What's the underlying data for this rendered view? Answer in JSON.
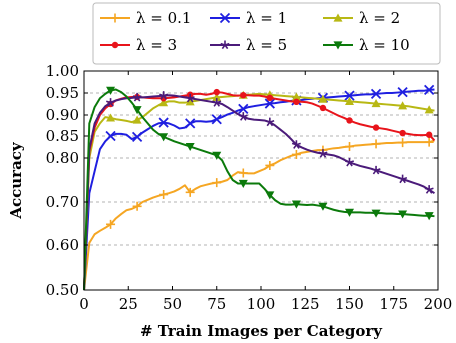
{
  "chart_data": {
    "type": "line",
    "title": "",
    "xlabel": "# Train Images per Category",
    "ylabel": "Accuracy",
    "xlim": [
      0,
      200
    ],
    "ylim": [
      0.5,
      1.0
    ],
    "y_scale": "nonlinear (ticks 0.50, 0.60, 0.70 widely spaced; 0.80–1.00 compressed)",
    "xticks": [
      "0",
      "25",
      "50",
      "75",
      "100",
      "125",
      "150",
      "175",
      "200"
    ],
    "yticks": [
      "0.50",
      "0.60",
      "0.70",
      "0.80",
      "0.85",
      "0.90",
      "0.95",
      "1.00"
    ],
    "grid": "horizontal dashed at y ticks",
    "legend_position": "top, outside plot, 3 columns",
    "x": [
      0,
      3,
      6,
      9,
      12,
      15,
      18,
      21,
      24,
      27,
      30,
      33,
      36,
      39,
      42,
      45,
      48,
      51,
      54,
      57,
      60,
      63,
      66,
      69,
      72,
      75,
      78,
      81,
      84,
      87,
      90,
      93,
      96,
      99,
      102,
      105,
      108,
      111,
      114,
      117,
      120,
      123,
      126,
      129,
      132,
      135,
      138,
      141,
      144,
      147,
      150,
      153,
      156,
      159,
      162,
      165,
      168,
      171,
      174,
      177,
      180,
      183,
      186,
      189,
      192,
      195,
      198
    ],
    "series": [
      {
        "name": "λ = 0.1",
        "color": "#f5a623",
        "marker": "plus",
        "values": [
          0.5,
          0.605,
          0.625,
          0.633,
          0.64,
          0.648,
          0.662,
          0.672,
          0.681,
          0.684,
          0.69,
          0.7,
          0.705,
          0.71,
          0.714,
          0.717,
          0.72,
          0.724,
          0.73,
          0.738,
          0.722,
          0.73,
          0.736,
          0.739,
          0.742,
          0.744,
          0.746,
          0.75,
          0.76,
          0.768,
          0.766,
          0.765,
          0.765,
          0.77,
          0.775,
          0.783,
          0.788,
          0.795,
          0.8,
          0.805,
          0.808,
          0.812,
          0.814,
          0.816,
          0.818,
          0.818,
          0.82,
          0.822,
          0.823,
          0.825,
          0.826,
          0.828,
          0.829,
          0.83,
          0.831,
          0.832,
          0.833,
          0.834,
          0.834,
          0.835,
          0.835,
          0.836,
          0.836,
          0.836,
          0.836,
          0.836,
          0.84
        ]
      },
      {
        "name": "λ = 1",
        "color": "#1f1fe0",
        "marker": "x",
        "values": [
          0.5,
          0.72,
          0.77,
          0.82,
          0.838,
          0.85,
          0.855,
          0.855,
          0.853,
          0.843,
          0.848,
          0.858,
          0.866,
          0.874,
          0.88,
          0.882,
          0.88,
          0.875,
          0.868,
          0.87,
          0.88,
          0.885,
          0.885,
          0.884,
          0.885,
          0.89,
          0.895,
          0.901,
          0.905,
          0.91,
          0.914,
          0.918,
          0.92,
          0.922,
          0.924,
          0.926,
          0.927,
          0.929,
          0.93,
          0.932,
          0.933,
          0.934,
          0.936,
          0.937,
          0.938,
          0.939,
          0.94,
          0.941,
          0.942,
          0.943,
          0.944,
          0.945,
          0.946,
          0.947,
          0.947,
          0.948,
          0.949,
          0.95,
          0.95,
          0.951,
          0.952,
          0.953,
          0.954,
          0.955,
          0.955,
          0.957,
          0.958
        ]
      },
      {
        "name": "λ = 2",
        "color": "#b8b814",
        "marker": "triangle-up",
        "values": [
          0.5,
          0.8,
          0.86,
          0.88,
          0.895,
          0.893,
          0.89,
          0.888,
          0.886,
          0.883,
          0.888,
          0.895,
          0.905,
          0.915,
          0.922,
          0.928,
          0.931,
          0.931,
          0.928,
          0.928,
          0.93,
          0.932,
          0.934,
          0.936,
          0.938,
          0.94,
          0.941,
          0.942,
          0.943,
          0.944,
          0.945,
          0.946,
          0.947,
          0.948,
          0.947,
          0.946,
          0.945,
          0.944,
          0.943,
          0.942,
          0.941,
          0.94,
          0.939,
          0.938,
          0.937,
          0.936,
          0.935,
          0.934,
          0.933,
          0.932,
          0.931,
          0.93,
          0.929,
          0.928,
          0.927,
          0.926,
          0.925,
          0.924,
          0.923,
          0.922,
          0.921,
          0.92,
          0.918,
          0.916,
          0.914,
          0.912,
          0.91
        ]
      },
      {
        "name": "λ = 3",
        "color": "#e8141b",
        "marker": "circle",
        "values": [
          0.5,
          0.815,
          0.87,
          0.9,
          0.915,
          0.925,
          0.933,
          0.937,
          0.94,
          0.941,
          0.941,
          0.94,
          0.939,
          0.938,
          0.938,
          0.938,
          0.939,
          0.94,
          0.942,
          0.944,
          0.946,
          0.948,
          0.948,
          0.946,
          0.948,
          0.952,
          0.951,
          0.948,
          0.945,
          0.944,
          0.945,
          0.945,
          0.944,
          0.944,
          0.942,
          0.939,
          0.937,
          0.935,
          0.933,
          0.931,
          0.93,
          0.93,
          0.929,
          0.926,
          0.921,
          0.916,
          0.91,
          0.904,
          0.898,
          0.893,
          0.887,
          0.882,
          0.878,
          0.875,
          0.872,
          0.87,
          0.868,
          0.866,
          0.863,
          0.86,
          0.857,
          0.855,
          0.853,
          0.852,
          0.852,
          0.853,
          0.84
        ]
      },
      {
        "name": "λ = 5",
        "color": "#4b1b7a",
        "marker": "star",
        "values": [
          0.5,
          0.82,
          0.88,
          0.905,
          0.92,
          0.928,
          0.933,
          0.936,
          0.938,
          0.939,
          0.94,
          0.94,
          0.941,
          0.942,
          0.943,
          0.944,
          0.945,
          0.944,
          0.942,
          0.94,
          0.938,
          0.936,
          0.934,
          0.932,
          0.93,
          0.928,
          0.925,
          0.918,
          0.91,
          0.902,
          0.896,
          0.891,
          0.889,
          0.888,
          0.887,
          0.883,
          0.875,
          0.865,
          0.855,
          0.843,
          0.83,
          0.824,
          0.819,
          0.815,
          0.812,
          0.81,
          0.808,
          0.806,
          0.802,
          0.796,
          0.79,
          0.786,
          0.782,
          0.779,
          0.776,
          0.772,
          0.768,
          0.764,
          0.76,
          0.756,
          0.752,
          0.748,
          0.744,
          0.74,
          0.735,
          0.728,
          0.72
        ]
      },
      {
        "name": "λ = 10",
        "color": "#0b7a0b",
        "marker": "triangle-down",
        "values": [
          0.5,
          0.88,
          0.918,
          0.938,
          0.948,
          0.956,
          0.958,
          0.952,
          0.942,
          0.928,
          0.912,
          0.895,
          0.88,
          0.865,
          0.855,
          0.848,
          0.843,
          0.838,
          0.834,
          0.83,
          0.826,
          0.822,
          0.818,
          0.814,
          0.81,
          0.806,
          0.795,
          0.77,
          0.75,
          0.742,
          0.742,
          0.742,
          0.742,
          0.742,
          0.73,
          0.716,
          0.704,
          0.696,
          0.694,
          0.694,
          0.695,
          0.694,
          0.693,
          0.694,
          0.692,
          0.69,
          0.686,
          0.682,
          0.679,
          0.677,
          0.676,
          0.676,
          0.676,
          0.675,
          0.675,
          0.674,
          0.674,
          0.673,
          0.673,
          0.672,
          0.672,
          0.671,
          0.67,
          0.669,
          0.668,
          0.668,
          0.667
        ]
      }
    ]
  }
}
